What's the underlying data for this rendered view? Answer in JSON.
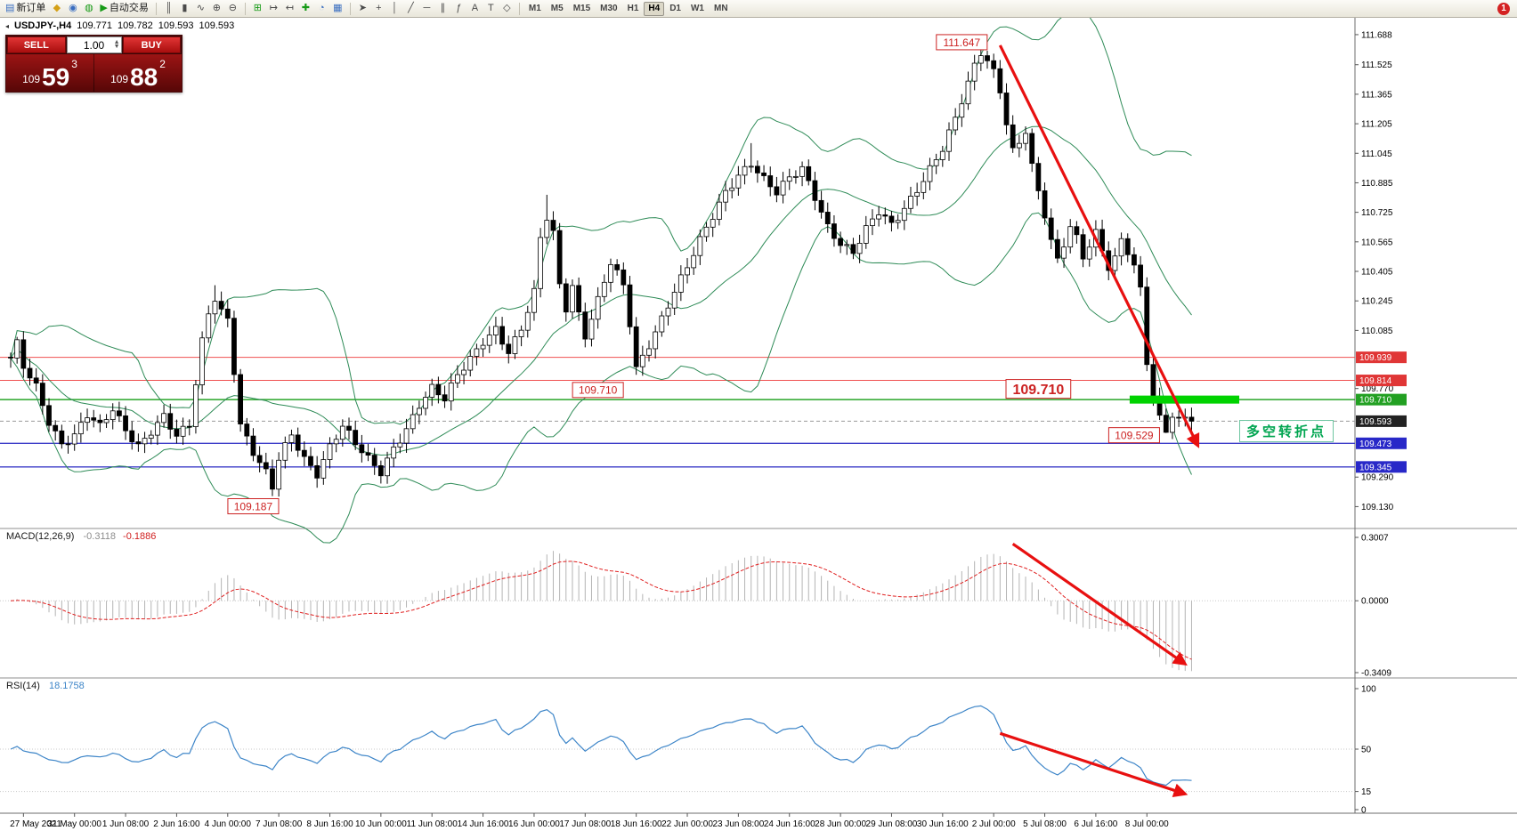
{
  "toolbar": {
    "groups": [
      {
        "items": [
          {
            "name": "new-order-button",
            "glyph": "▤",
            "accent": "blue",
            "label": "新订单"
          },
          {
            "name": "favorites-icon",
            "glyph": "◆",
            "accent": "yellow"
          },
          {
            "name": "market-watch-icon",
            "glyph": "◉",
            "accent": "blue"
          },
          {
            "name": "data-window-icon",
            "glyph": "◍",
            "accent": "green"
          },
          {
            "name": "autotrading-button",
            "glyph": "▶",
            "accent": "green",
            "label": "自动交易"
          }
        ]
      },
      {
        "items": [
          {
            "name": "bar-chart-mode-icon",
            "glyph": "║"
          },
          {
            "name": "candlestick-mode-icon",
            "glyph": "▮"
          },
          {
            "name": "line-chart-mode-icon",
            "glyph": "∿"
          },
          {
            "name": "zoom-in-icon",
            "glyph": "⊕"
          },
          {
            "name": "zoom-out-icon",
            "glyph": "⊖"
          }
        ]
      },
      {
        "items": [
          {
            "name": "tile-windows-icon",
            "glyph": "⊞",
            "accent": "green"
          },
          {
            "name": "auto-scroll-icon",
            "glyph": "↦"
          },
          {
            "name": "chart-shift-icon",
            "glyph": "↤"
          },
          {
            "name": "indicators-add-icon",
            "glyph": "✚",
            "accent": "green"
          },
          {
            "name": "periods-icon",
            "glyph": "◔",
            "accent": "blue"
          },
          {
            "name": "templates-icon",
            "glyph": "▦",
            "accent": "blue"
          }
        ]
      },
      {
        "items": [
          {
            "name": "cursor-icon",
            "glyph": "➤"
          },
          {
            "name": "crosshair-icon",
            "glyph": "+"
          },
          {
            "name": "vertical-line-icon",
            "glyph": "│"
          },
          {
            "name": "trendline-icon",
            "glyph": "╱"
          },
          {
            "name": "horizontal-line-icon",
            "glyph": "─"
          },
          {
            "name": "channel-icon",
            "glyph": "∥"
          },
          {
            "name": "fibonacci-icon",
            "glyph": "ƒ"
          },
          {
            "name": "text-icon",
            "glyph": "A"
          },
          {
            "name": "label-icon",
            "glyph": "T"
          },
          {
            "name": "shapes-icon",
            "glyph": "◇"
          }
        ]
      }
    ],
    "timeframes": [
      "M1",
      "M5",
      "M15",
      "M30",
      "H1",
      "H4",
      "D1",
      "W1",
      "MN"
    ],
    "active_timeframe": "H4",
    "notification_badge": "1"
  },
  "symbol_info": {
    "marker": "◂",
    "symbol": "USDJPY-,H4",
    "open": "109.771",
    "high": "109.782",
    "low": "109.593",
    "close": "109.593"
  },
  "trade_panel": {
    "sell_label": "SELL",
    "buy_label": "BUY",
    "volume": "1.00",
    "up_icon": "▲",
    "down_icon": "▼",
    "sell_small": "109",
    "sell_big": "59",
    "sell_sup": "3",
    "buy_small": "109",
    "buy_big": "88",
    "buy_sup": "2"
  },
  "indicators": {
    "macd": {
      "name": "MACD(12,26,9)",
      "main_value": "-0.3118",
      "signal_value": "-0.1886"
    },
    "rsi": {
      "name": "RSI(14)",
      "value": "18.1758"
    }
  },
  "annotations": {
    "turning_point": "多空转折点"
  },
  "chart_data": {
    "type": "candlestick",
    "symbol": "USDJPY-",
    "timeframe": "H4",
    "title": "USDJPY-,H4",
    "current_bar": {
      "open": 109.771,
      "high": 109.782,
      "low": 109.593,
      "close": 109.593
    },
    "ylim": [
      109.05,
      111.76
    ],
    "candle_count": 186,
    "up_color": "#ffffff",
    "down_color": "#000000",
    "wick_color": "#000000",
    "close_path": [
      [
        0,
        109.92
      ],
      [
        1,
        110.0
      ],
      [
        2,
        109.88
      ],
      [
        4,
        109.78
      ],
      [
        6,
        109.6
      ],
      [
        8,
        109.48
      ],
      [
        10,
        109.52
      ],
      [
        12,
        109.62
      ],
      [
        14,
        109.55
      ],
      [
        16,
        109.65
      ],
      [
        18,
        109.55
      ],
      [
        20,
        109.47
      ],
      [
        22,
        109.55
      ],
      [
        24,
        109.62
      ],
      [
        26,
        109.5
      ],
      [
        28,
        109.56
      ],
      [
        30,
        110.02
      ],
      [
        31,
        110.18
      ],
      [
        32,
        110.27
      ],
      [
        33,
        110.2
      ],
      [
        34,
        110.16
      ],
      [
        35,
        109.88
      ],
      [
        36,
        109.58
      ],
      [
        38,
        109.42
      ],
      [
        40,
        109.3
      ],
      [
        41,
        109.22
      ],
      [
        42,
        109.38
      ],
      [
        44,
        109.52
      ],
      [
        46,
        109.4
      ],
      [
        48,
        109.32
      ],
      [
        50,
        109.46
      ],
      [
        52,
        109.56
      ],
      [
        54,
        109.46
      ],
      [
        56,
        109.38
      ],
      [
        58,
        109.32
      ],
      [
        60,
        109.46
      ],
      [
        62,
        109.56
      ],
      [
        64,
        109.68
      ],
      [
        66,
        109.76
      ],
      [
        68,
        109.7
      ],
      [
        70,
        109.84
      ],
      [
        72,
        109.94
      ],
      [
        74,
        110.04
      ],
      [
        76,
        110.1
      ],
      [
        78,
        109.96
      ],
      [
        80,
        110.08
      ],
      [
        82,
        110.28
      ],
      [
        83,
        110.58
      ],
      [
        84,
        110.7
      ],
      [
        85,
        110.62
      ],
      [
        86,
        110.34
      ],
      [
        87,
        110.22
      ],
      [
        88,
        110.34
      ],
      [
        89,
        110.18
      ],
      [
        90,
        110.06
      ],
      [
        92,
        110.24
      ],
      [
        94,
        110.44
      ],
      [
        96,
        110.32
      ],
      [
        97,
        110.12
      ],
      [
        98,
        109.88
      ],
      [
        100,
        110.02
      ],
      [
        102,
        110.16
      ],
      [
        104,
        110.3
      ],
      [
        106,
        110.42
      ],
      [
        108,
        110.56
      ],
      [
        110,
        110.7
      ],
      [
        112,
        110.84
      ],
      [
        114,
        110.94
      ],
      [
        116,
        111.0
      ],
      [
        118,
        110.9
      ],
      [
        120,
        110.82
      ],
      [
        122,
        110.9
      ],
      [
        124,
        110.96
      ],
      [
        126,
        110.82
      ],
      [
        128,
        110.66
      ],
      [
        130,
        110.56
      ],
      [
        132,
        110.5
      ],
      [
        134,
        110.62
      ],
      [
        136,
        110.72
      ],
      [
        138,
        110.66
      ],
      [
        140,
        110.76
      ],
      [
        142,
        110.86
      ],
      [
        144,
        110.96
      ],
      [
        146,
        111.06
      ],
      [
        148,
        111.22
      ],
      [
        150,
        111.42
      ],
      [
        151,
        111.52
      ],
      [
        152,
        111.6
      ],
      [
        153,
        111.56
      ],
      [
        154,
        111.5
      ],
      [
        155,
        111.4
      ],
      [
        156,
        111.22
      ],
      [
        157,
        111.06
      ],
      [
        158,
        111.1
      ],
      [
        159,
        111.16
      ],
      [
        160,
        110.96
      ],
      [
        161,
        110.82
      ],
      [
        162,
        110.7
      ],
      [
        163,
        110.56
      ],
      [
        164,
        110.46
      ],
      [
        165,
        110.56
      ],
      [
        166,
        110.66
      ],
      [
        167,
        110.6
      ],
      [
        168,
        110.5
      ],
      [
        169,
        110.56
      ],
      [
        170,
        110.62
      ],
      [
        171,
        110.52
      ],
      [
        172,
        110.42
      ],
      [
        173,
        110.46
      ],
      [
        174,
        110.56
      ],
      [
        175,
        110.5
      ],
      [
        176,
        110.42
      ],
      [
        177,
        110.3
      ],
      [
        178,
        109.92
      ],
      [
        179,
        109.74
      ],
      [
        180,
        109.62
      ],
      [
        181,
        109.56
      ],
      [
        182,
        109.64
      ],
      [
        183,
        109.6
      ],
      [
        184,
        109.62
      ],
      [
        185,
        109.593
      ]
    ],
    "key_points": [
      {
        "i": 1,
        "f": "h",
        "v": 110.05
      },
      {
        "i": 32,
        "f": "h",
        "v": 110.33
      },
      {
        "i": 41,
        "f": "l",
        "v": 109.187
      },
      {
        "i": 84,
        "f": "h",
        "v": 110.82
      },
      {
        "i": 116,
        "f": "h",
        "v": 111.1
      },
      {
        "i": 152,
        "f": "h",
        "v": 111.647
      },
      {
        "i": 181,
        "f": "l",
        "v": 109.529
      },
      {
        "i": 185,
        "f": "c",
        "v": 109.593
      }
    ],
    "bollinger": {
      "period": 20,
      "deviation": 2,
      "color": "#2e8b57"
    },
    "levels": [
      {
        "price": 109.939,
        "color": "#f05050",
        "width": 1,
        "dash": ""
      },
      {
        "price": 109.814,
        "color": "#f05050",
        "width": 1,
        "dash": ""
      },
      {
        "price": 109.71,
        "color": "#28a428",
        "width": 1.4,
        "dash": ""
      },
      {
        "price": 109.593,
        "color": "#9a9a9a",
        "width": 1,
        "dash": "4 3"
      },
      {
        "price": 109.473,
        "color": "#3c3cc8",
        "width": 1.4,
        "dash": ""
      },
      {
        "price": 109.345,
        "color": "#3c3cc8",
        "width": 1.4,
        "dash": ""
      }
    ],
    "price_axis_ticks": [
      111.688,
      111.525,
      111.365,
      111.205,
      111.045,
      110.885,
      110.725,
      110.565,
      110.405,
      110.245,
      110.085,
      109.77,
      109.29,
      109.13
    ],
    "price_badges": [
      {
        "text": "109.939",
        "price": 109.939,
        "bg": "#e03636"
      },
      {
        "text": "109.814",
        "price": 109.814,
        "bg": "#e03636"
      },
      {
        "text": "109.710",
        "price": 109.71,
        "bg": "#22a022"
      },
      {
        "text": "109.593",
        "price": 109.593,
        "bg": "#222222"
      },
      {
        "text": "109.473",
        "price": 109.473,
        "bg": "#2828c8"
      },
      {
        "text": "109.345",
        "price": 109.345,
        "bg": "#2828c8"
      }
    ],
    "price_labels": [
      {
        "text": "111.647",
        "i": 149,
        "price": 111.647,
        "fs": 12,
        "bold": false
      },
      {
        "text": "109.710",
        "i": 92,
        "price": 109.762,
        "fs": 12,
        "bold": false
      },
      {
        "text": "109.710",
        "i": 161,
        "price": 109.768,
        "fs": 16,
        "bold": true
      },
      {
        "text": "109.529",
        "i": 176,
        "price": 109.517,
        "fs": 12,
        "bold": false
      },
      {
        "text": "109.187",
        "i": 38,
        "price": 109.132,
        "fs": 12,
        "bold": false
      }
    ],
    "highlight_bar": {
      "i1": 176,
      "x2": 1392,
      "price": 109.71,
      "color": "#00d300",
      "height": 9
    },
    "arrows": [
      {
        "pane": "price",
        "i1": 155,
        "v1": 111.63,
        "i2": 186,
        "v2": 109.46
      },
      {
        "pane": "macd",
        "i1": 157,
        "v1": 0.27,
        "i2": 184,
        "v2": -0.3
      },
      {
        "pane": "rsi",
        "i1": 155,
        "v1": 63,
        "i2": 184,
        "v2": 13
      }
    ],
    "macd_axis": [
      "0.3007",
      "0.0000",
      "-0.3409"
    ],
    "rsi_axis": [
      "100",
      "50",
      "15",
      "0"
    ],
    "rsi_levels": [
      50,
      15
    ],
    "time_labels": [
      "27 May 2021",
      "31 May 00:00",
      "1 Jun 08:00",
      "2 Jun 16:00",
      "4 Jun 00:00",
      "7 Jun 08:00",
      "8 Jun 16:00",
      "10 Jun 00:00",
      "11 Jun 08:00",
      "14 Jun 16:00",
      "16 Jun 00:00",
      "17 Jun 08:00",
      "18 Jun 16:00",
      "22 Jun 00:00",
      "23 Jun 08:00",
      "24 Jun 16:00",
      "28 Jun 00:00",
      "29 Jun 08:00",
      "30 Jun 16:00",
      "2 Jul 00:00",
      "5 Jul 08:00",
      "6 Jul 16:00",
      "8 Jul 00:00"
    ],
    "label_start_index": 2,
    "label_stride": 8
  }
}
